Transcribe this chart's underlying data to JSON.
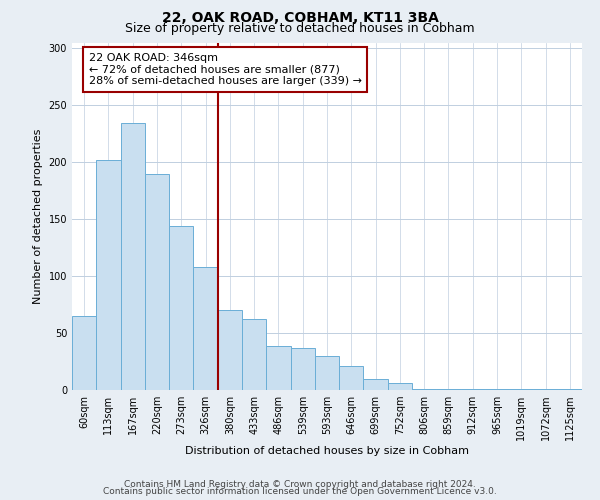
{
  "title": "22, OAK ROAD, COBHAM, KT11 3BA",
  "subtitle": "Size of property relative to detached houses in Cobham",
  "xlabel": "Distribution of detached houses by size in Cobham",
  "ylabel": "Number of detached properties",
  "categories": [
    "60sqm",
    "113sqm",
    "167sqm",
    "220sqm",
    "273sqm",
    "326sqm",
    "380sqm",
    "433sqm",
    "486sqm",
    "539sqm",
    "593sqm",
    "646sqm",
    "699sqm",
    "752sqm",
    "806sqm",
    "859sqm",
    "912sqm",
    "965sqm",
    "1019sqm",
    "1072sqm",
    "1125sqm"
  ],
  "values": [
    65,
    202,
    234,
    190,
    144,
    108,
    70,
    62,
    39,
    37,
    30,
    21,
    10,
    6,
    1,
    1,
    1,
    1,
    1,
    1,
    1
  ],
  "bar_color": "#c9dff0",
  "bar_edge_color": "#6aaed6",
  "vline_x": 5.5,
  "vline_color": "#990000",
  "annotation_text": "22 OAK ROAD: 346sqm\n← 72% of detached houses are smaller (877)\n28% of semi-detached houses are larger (339) →",
  "annotation_box_color": "#ffffff",
  "annotation_box_edge": "#990000",
  "ylim": [
    0,
    305
  ],
  "yticks": [
    0,
    50,
    100,
    150,
    200,
    250,
    300
  ],
  "footer_line1": "Contains HM Land Registry data © Crown copyright and database right 2024.",
  "footer_line2": "Contains public sector information licensed under the Open Government Licence v3.0.",
  "bg_color": "#e8eef4",
  "plot_bg_color": "#ffffff",
  "grid_color": "#c0cfe0",
  "title_fontsize": 10,
  "subtitle_fontsize": 9,
  "axis_label_fontsize": 8,
  "tick_fontsize": 7,
  "annotation_fontsize": 8,
  "footer_fontsize": 6.5
}
